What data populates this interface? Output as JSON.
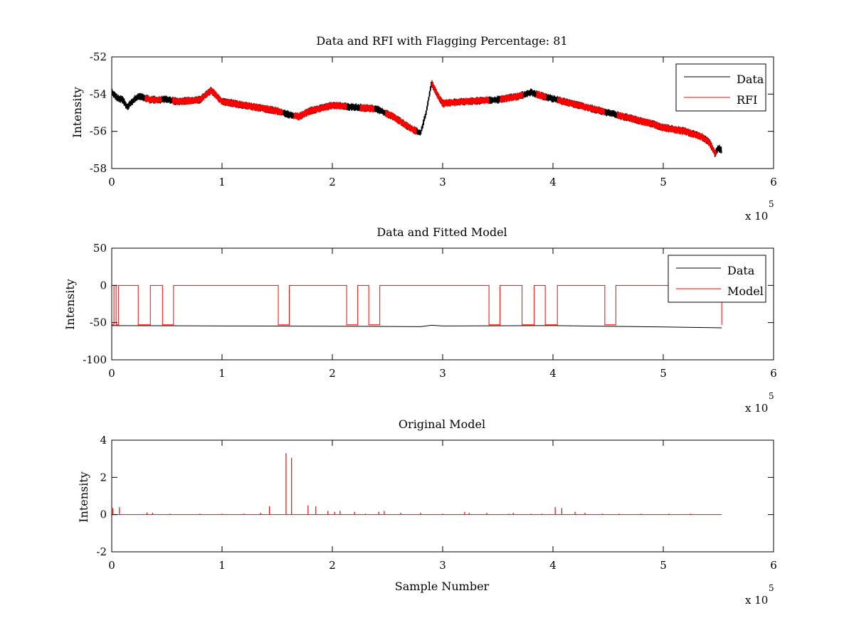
{
  "figure": {
    "background": "#ffffff"
  },
  "colors": {
    "data": "#000000",
    "rfi": "#ff0000",
    "model": "#ff0000"
  },
  "chart_data": [
    {
      "type": "line",
      "title": "Data and RFI with Flagging Percentage: 81",
      "xlabel": "",
      "ylabel": "Intensity",
      "xlim": [
        0,
        6
      ],
      "ylim": [
        -58,
        -52
      ],
      "xticks": [
        0,
        1,
        2,
        3,
        4,
        5,
        6
      ],
      "yticks": [
        -58,
        -56,
        -54,
        -52
      ],
      "x_multiplier": {
        "prefix": "x 10",
        "exponent": "5"
      },
      "legend": {
        "position": "top-right",
        "entries": [
          "Data",
          "RFI"
        ]
      },
      "series": [
        {
          "name": "Data",
          "color": "#000000",
          "x": [
            0,
            0.05,
            0.1,
            0.14,
            0.17,
            0.2,
            0.25,
            0.3,
            0.35,
            0.5,
            0.6,
            0.8,
            0.9,
            1.0,
            1.2,
            1.5,
            1.6,
            1.7,
            1.8,
            2.0,
            2.2,
            2.4,
            2.55,
            2.7,
            2.8,
            2.85,
            2.9,
            2.95,
            3.0,
            3.2,
            3.5,
            3.7,
            3.8,
            3.9,
            4.1,
            4.3,
            4.5,
            4.7,
            4.9,
            5.0,
            5.2,
            5.35,
            5.42,
            5.47,
            5.5,
            5.53
          ],
          "values": [
            -53.9,
            -54.2,
            -54.3,
            -54.7,
            -54.5,
            -54.3,
            -54.1,
            -54.2,
            -54.3,
            -54.3,
            -54.4,
            -54.3,
            -53.8,
            -54.4,
            -54.6,
            -54.9,
            -55.1,
            -55.2,
            -54.9,
            -54.6,
            -54.7,
            -54.8,
            -55.2,
            -55.8,
            -56.1,
            -55.0,
            -53.4,
            -54.0,
            -54.5,
            -54.4,
            -54.3,
            -54.1,
            -53.9,
            -54.1,
            -54.4,
            -54.7,
            -55.0,
            -55.3,
            -55.6,
            -55.8,
            -56.0,
            -56.3,
            -56.6,
            -57.2,
            -56.9,
            -57.0
          ]
        },
        {
          "name": "RFI",
          "color": "#ff0000",
          "segments": [
            [
              0.3,
              0.45
            ],
            [
              0.55,
              1.55
            ],
            [
              1.65,
              2.13
            ],
            [
              2.25,
              2.38
            ],
            [
              2.48,
              2.76
            ],
            [
              2.9,
              3.42
            ],
            [
              3.52,
              3.73
            ],
            [
              3.85,
              3.94
            ],
            [
              4.04,
              4.47
            ],
            [
              4.58,
              5.48
            ]
          ]
        }
      ]
    },
    {
      "type": "line",
      "title": "Data and Fitted Model",
      "xlabel": "",
      "ylabel": "Intensity",
      "xlim": [
        0,
        6
      ],
      "ylim": [
        -100,
        50
      ],
      "xticks": [
        0,
        1,
        2,
        3,
        4,
        5,
        6
      ],
      "yticks": [
        -100,
        -50,
        0,
        50
      ],
      "x_multiplier": {
        "prefix": "x 10",
        "exponent": "5"
      },
      "legend": {
        "position": "top-right",
        "entries": [
          "Data",
          "Model"
        ]
      },
      "series": [
        {
          "name": "Data",
          "color": "#000000",
          "x": [
            0,
            1,
            2,
            2.8,
            2.9,
            3,
            4,
            5,
            5.53
          ],
          "values": [
            -54,
            -54.5,
            -54.8,
            -55.5,
            -53.5,
            -54.5,
            -54,
            -55.8,
            -57
          ]
        },
        {
          "name": "Model",
          "color": "#ff0000",
          "high": 0,
          "low": -53,
          "high_intervals": [
            [
              0.02,
              0.04
            ],
            [
              0.06,
              0.24
            ],
            [
              0.35,
              0.46
            ],
            [
              0.56,
              1.51
            ],
            [
              1.61,
              2.13
            ],
            [
              2.23,
              2.33
            ],
            [
              2.43,
              3.42
            ],
            [
              3.52,
              3.72
            ],
            [
              3.83,
              3.93
            ],
            [
              4.04,
              4.47
            ],
            [
              4.57,
              5.53
            ]
          ],
          "low_intervals": [
            [
              0.04,
              0.06
            ]
          ]
        }
      ]
    },
    {
      "type": "line",
      "title": "Original Model",
      "xlabel": "Sample Number",
      "ylabel": "Intensity",
      "xlim": [
        0,
        6
      ],
      "ylim": [
        -2,
        4
      ],
      "xticks": [
        0,
        1,
        2,
        3,
        4,
        5,
        6
      ],
      "yticks": [
        -2,
        0,
        2,
        4
      ],
      "x_multiplier": {
        "prefix": "x 10",
        "exponent": "5"
      },
      "series": [
        {
          "color": "#ff0000",
          "baseline": 0,
          "xmax": 5.53,
          "spikes": [
            [
              0.01,
              0.35
            ],
            [
              0.07,
              0.4
            ],
            [
              0.32,
              0.12
            ],
            [
              0.37,
              0.1
            ],
            [
              0.53,
              0.05
            ],
            [
              0.8,
              0.05
            ],
            [
              1.0,
              0.05
            ],
            [
              1.2,
              0.06
            ],
            [
              1.35,
              0.1
            ],
            [
              1.43,
              0.45
            ],
            [
              1.58,
              3.3
            ],
            [
              1.63,
              3.05
            ],
            [
              1.78,
              0.5
            ],
            [
              1.85,
              0.45
            ],
            [
              1.96,
              0.2
            ],
            [
              2.02,
              0.15
            ],
            [
              2.07,
              0.2
            ],
            [
              2.2,
              0.15
            ],
            [
              2.3,
              0.05
            ],
            [
              2.42,
              0.15
            ],
            [
              2.47,
              0.2
            ],
            [
              2.62,
              0.1
            ],
            [
              2.8,
              0.1
            ],
            [
              3.0,
              0.05
            ],
            [
              3.2,
              0.15
            ],
            [
              3.24,
              0.1
            ],
            [
              3.4,
              0.1
            ],
            [
              3.6,
              0.05
            ],
            [
              3.64,
              0.1
            ],
            [
              3.8,
              0.05
            ],
            [
              3.9,
              0.05
            ],
            [
              4.02,
              0.4
            ],
            [
              4.08,
              0.35
            ],
            [
              4.2,
              0.15
            ],
            [
              4.29,
              0.1
            ],
            [
              4.45,
              0.05
            ],
            [
              4.6,
              0.05
            ],
            [
              4.8,
              0.05
            ],
            [
              5.05,
              0.05
            ],
            [
              5.25,
              0.05
            ]
          ]
        }
      ]
    }
  ]
}
